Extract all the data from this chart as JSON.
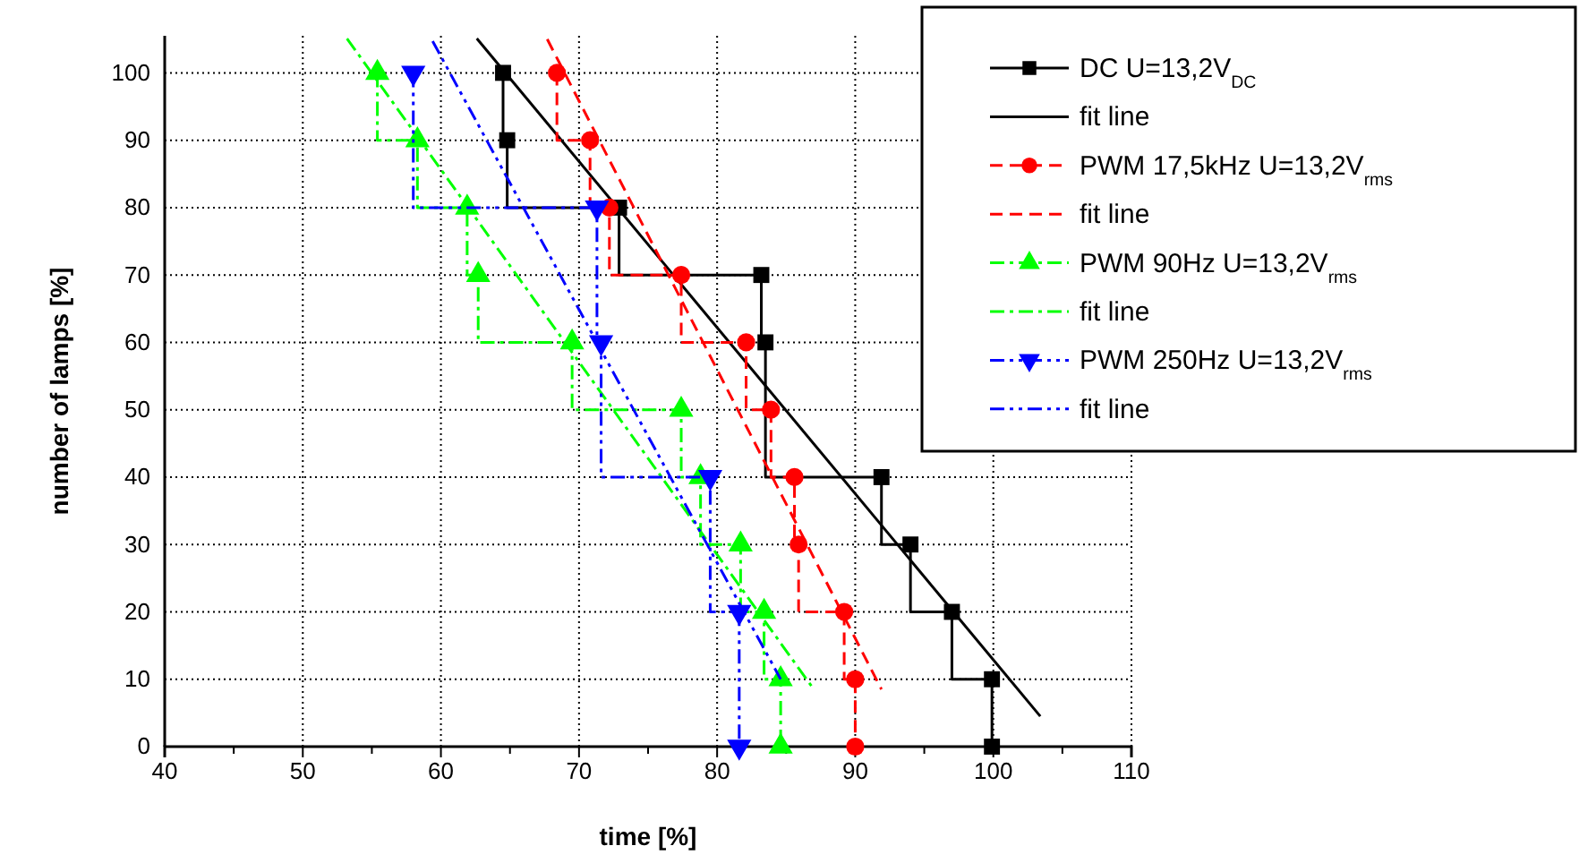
{
  "chart_data": {
    "type": "step",
    "xlabel": "time [%]",
    "ylabel": "number of lamps [%]",
    "xlim": [
      40,
      110
    ],
    "xticks": [
      40,
      {
        "value": 45,
        "label": null
      },
      50,
      {
        "value": 55,
        "label": null
      },
      60,
      {
        "value": 65,
        "label": null
      },
      70,
      {
        "value": 75,
        "label": null
      },
      80,
      {
        "value": 85,
        "label": null
      },
      90,
      {
        "value": 95,
        "label": null
      },
      100,
      {
        "value": 105,
        "label": null
      },
      110
    ],
    "ylim": [
      0,
      105.5
    ],
    "yticks": [
      0,
      10,
      20,
      30,
      40,
      50,
      60,
      70,
      80,
      90,
      100
    ],
    "grid": true,
    "legend": "top right",
    "series": [
      {
        "name": "DC U=13,2V$_{DC}$",
        "color": "#000000",
        "marker": "square",
        "line_style": "solid",
        "x": [
          64.5,
          64.8,
          72.9,
          83.2,
          83.5,
          null,
          91.9,
          94.0,
          97.0,
          99.9,
          99.9
        ],
        "values": [
          100,
          90,
          80,
          70,
          60,
          null,
          40,
          30,
          20,
          10,
          0
        ]
      },
      {
        "name": "fit line",
        "color": "#000000",
        "type": "line",
        "marker": "none",
        "line_style": "solid",
        "x": [
          62.6,
          103.4
        ],
        "values": [
          105.1,
          4.5
        ]
      },
      {
        "name": "PWM 17,5kHz U=13,2V$_{rms}$",
        "color": "#ff0000",
        "marker": "circle",
        "line_style": "dashed",
        "x": [
          68.4,
          70.8,
          72.2,
          77.4,
          82.1,
          83.9,
          85.6,
          85.9,
          89.2,
          90.0,
          90.0
        ],
        "values": [
          100,
          90,
          80,
          70,
          60,
          50,
          40,
          30,
          20,
          10,
          0
        ]
      },
      {
        "name": "fit line",
        "color": "#ff0000",
        "type": "line",
        "marker": "none",
        "line_style": "dashed",
        "x": [
          67.7,
          91.9
        ],
        "values": [
          105,
          8.5
        ]
      },
      {
        "name": "PWM 90Hz U=13,2V$_{rms}$",
        "color": "#00ff00",
        "marker": "triangle",
        "line_style": "dashdot",
        "x": [
          55.4,
          58.3,
          61.9,
          62.7,
          69.5,
          77.4,
          78.8,
          81.7,
          83.4,
          84.6,
          84.6
        ],
        "values": [
          100,
          90,
          80,
          70,
          60,
          50,
          40,
          30,
          20,
          10,
          0
        ]
      },
      {
        "name": "fit line",
        "color": "#00ff00",
        "type": "line",
        "marker": "none",
        "line_style": "dashdot",
        "x": [
          53.2,
          87.0
        ],
        "values": [
          105.1,
          8.5
        ]
      },
      {
        "name": "PWM 250Hz U=13,2V$_{rms}$",
        "color": "#0000ff",
        "marker": "triangle-down",
        "line_style": "dashdotdot",
        "x": [
          58.0,
          71.3,
          71.6,
          79.5,
          81.6,
          81.6
        ],
        "values": [
          100,
          80,
          60,
          40,
          20,
          0
        ]
      },
      {
        "name": "fit line",
        "color": "#0000ff",
        "type": "line",
        "marker": "none",
        "line_style": "dashdotdot",
        "x": [
          59.4,
          84.6
        ],
        "values": [
          104.7,
          10
        ]
      }
    ]
  }
}
